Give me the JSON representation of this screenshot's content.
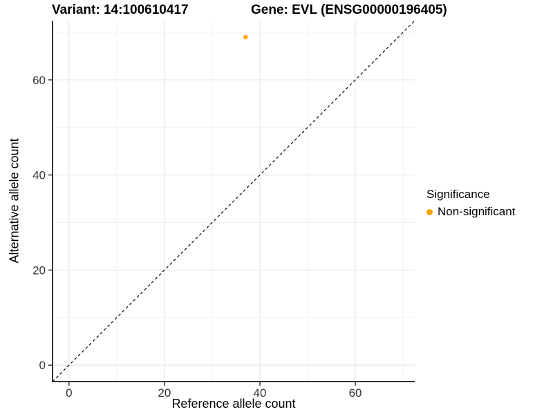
{
  "chart_data": {
    "type": "scatter",
    "title_left": "Variant: 14:100610417",
    "title_right": "Gene: EVL (ENSG00000196405)",
    "xlabel": "Reference allele count",
    "ylabel": "Alternative allele count",
    "xlim": [
      -3.45,
      72.45
    ],
    "ylim": [
      -3.45,
      72.45
    ],
    "x_ticks": [
      0,
      20,
      40,
      60
    ],
    "y_ticks": [
      0,
      20,
      40,
      60
    ],
    "x_minor_ticks": [
      10,
      30,
      50,
      70
    ],
    "y_minor_ticks": [
      10,
      30,
      50,
      70
    ],
    "grid": true,
    "identity_line": {
      "slope": 1,
      "intercept": 0,
      "style": "dashed",
      "color": "#000000"
    },
    "series": [
      {
        "name": "Non-significant",
        "color": "#FFA500",
        "points": [
          {
            "x": 37,
            "y": 69
          }
        ]
      }
    ],
    "legend": {
      "title": "Significance",
      "position": "right",
      "items": [
        {
          "label": "Non-significant",
          "color": "#FFA500"
        }
      ]
    },
    "colors": {
      "background": "#FFFFFF",
      "axis": "#333333",
      "tick_text": "#333333",
      "grid_major": "#E8E8E8",
      "grid_minor": "#F2F2F2"
    }
  }
}
